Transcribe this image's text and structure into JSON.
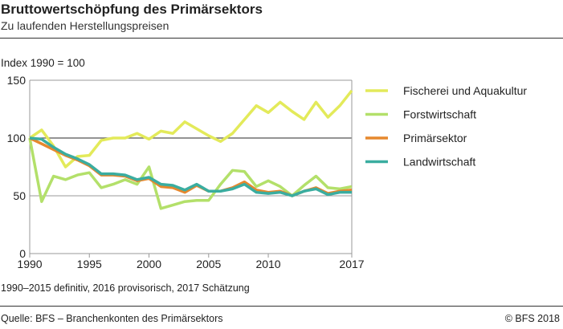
{
  "header": {
    "title": "Bruttowertschöpfung des Primärsektors",
    "subtitle": "Zu laufenden Herstellungspreisen"
  },
  "footer": {
    "note": "1990–2015 definitiv, 2016 provisorisch, 2017 Schätzung",
    "source": "Quelle: BFS – Branchenkonten des Primärsektors",
    "copyright": "© BFS  2018"
  },
  "chart_data": {
    "type": "line",
    "ylabel": "Index 1990 = 100",
    "ylim": [
      0,
      150
    ],
    "yticks": [
      0,
      50,
      100,
      150
    ],
    "xlim": [
      1990,
      2017
    ],
    "xticks": [
      1990,
      1995,
      2000,
      2005,
      2010,
      2017
    ],
    "grid": true,
    "legend_position": "right",
    "x": [
      1990,
      1991,
      1992,
      1993,
      1994,
      1995,
      1996,
      1997,
      1998,
      1999,
      2000,
      2001,
      2002,
      2003,
      2004,
      2005,
      2006,
      2007,
      2008,
      2009,
      2010,
      2011,
      2012,
      2013,
      2014,
      2015,
      2016,
      2017
    ],
    "series": [
      {
        "name": "Fischerei und Aquakultur",
        "color": "#e3ea5a",
        "values": [
          100,
          107,
          93,
          75,
          84,
          85,
          98,
          100,
          100,
          104,
          99,
          106,
          104,
          114,
          108,
          102,
          97,
          104,
          116,
          128,
          122,
          131,
          123,
          116,
          131,
          118,
          128,
          141
        ]
      },
      {
        "name": "Forstwirtschaft",
        "color": "#b3e06a",
        "values": [
          100,
          45,
          67,
          64,
          68,
          70,
          57,
          60,
          64,
          60,
          75,
          39,
          42,
          45,
          46,
          46,
          60,
          72,
          71,
          58,
          63,
          58,
          50,
          59,
          67,
          57,
          56,
          58
        ]
      },
      {
        "name": "Primärsektor",
        "color": "#e6882e",
        "values": [
          100,
          95,
          90,
          85,
          81,
          76,
          68,
          68,
          67,
          63,
          65,
          58,
          57,
          53,
          59,
          54,
          54,
          57,
          62,
          55,
          53,
          54,
          50,
          54,
          57,
          52,
          54,
          55
        ]
      },
      {
        "name": "Landwirtschaft",
        "color": "#3aada0",
        "values": [
          100,
          99,
          92,
          86,
          82,
          77,
          69,
          69,
          68,
          64,
          66,
          60,
          59,
          55,
          60,
          54,
          54,
          56,
          60,
          53,
          52,
          53,
          50,
          54,
          56,
          51,
          53,
          53
        ]
      }
    ]
  }
}
